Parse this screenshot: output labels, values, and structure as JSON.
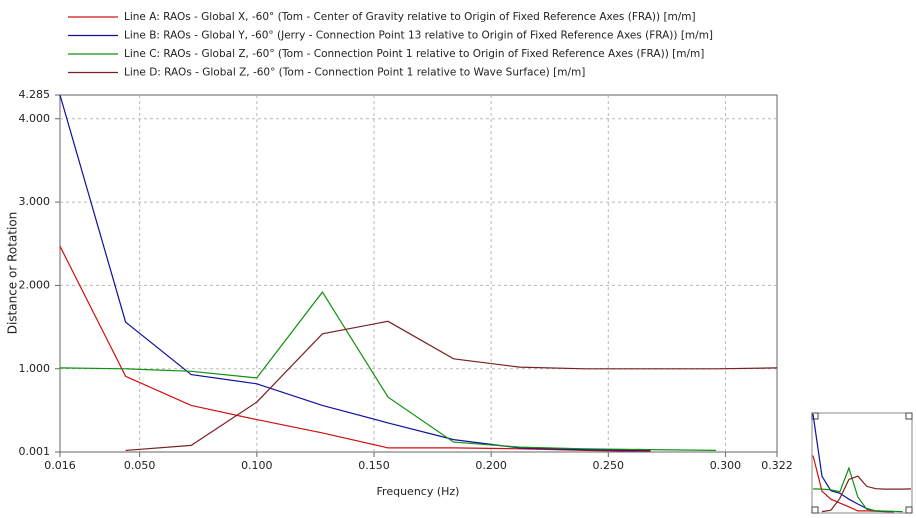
{
  "chart_data": {
    "type": "line",
    "x_label": "Frequency (Hz)",
    "y_label": "Distance or Rotation",
    "x": [
      0.016,
      0.044,
      0.072,
      0.1,
      0.128,
      0.156,
      0.184,
      0.212,
      0.24,
      0.268,
      0.296,
      0.322
    ],
    "series": [
      {
        "name": "Line A: RAOs - Global X, -60° (Tom - Center of Gravity relative to Origin of Fixed Reference Axes (FRA)) [m/m]",
        "color": "#d01010",
        "values": [
          2.47,
          0.91,
          0.56,
          0.39,
          0.23,
          0.05,
          0.05,
          0.04,
          0.02,
          0.01,
          null,
          null
        ]
      },
      {
        "name": "Line B: RAOs - Global Y, -60° (Jerry - Connection Point 13 relative to Origin of Fixed Reference Axes (FRA)) [m/m]",
        "color": "#1010a0",
        "values": [
          4.285,
          1.56,
          0.93,
          0.82,
          0.56,
          0.35,
          0.15,
          0.05,
          0.03,
          0.02,
          null,
          null
        ]
      },
      {
        "name": "Line C: RAOs - Global Z, -60° (Tom - Connection Point 1 relative to Origin of Fixed Reference Axes (FRA)) [m/m]",
        "color": "#109010",
        "values": [
          1.01,
          1.0,
          0.97,
          0.89,
          1.92,
          0.66,
          0.12,
          0.06,
          0.04,
          0.03,
          0.02,
          null
        ]
      },
      {
        "name": "Line D: RAOs - Global Z, -60° (Tom - Connection Point 1 relative to Wave Surface) [m/m]",
        "color": "#7a2020",
        "values": [
          null,
          0.02,
          0.08,
          0.6,
          1.42,
          1.57,
          1.12,
          1.02,
          1.0,
          1.0,
          1.0,
          1.01
        ]
      }
    ],
    "xlim": [
      0.016,
      0.322
    ],
    "xticks": [
      {
        "value": 0.016,
        "label": "0.016"
      },
      {
        "value": 0.05,
        "label": "0.050"
      },
      {
        "value": 0.1,
        "label": "0.100"
      },
      {
        "value": 0.15,
        "label": "0.150"
      },
      {
        "value": 0.2,
        "label": "0.200"
      },
      {
        "value": 0.25,
        "label": "0.250"
      },
      {
        "value": 0.3,
        "label": "0.300"
      },
      {
        "value": 0.322,
        "label": "0.322"
      }
    ],
    "ylim": [
      0.001,
      4.285
    ],
    "yticks": [
      {
        "value": 0.001,
        "label": "0.001"
      },
      {
        "value": 1,
        "label": "1.000"
      },
      {
        "value": 2,
        "label": "2.000"
      },
      {
        "value": 3,
        "label": "3.000"
      },
      {
        "value": 4,
        "label": "4.000"
      },
      {
        "value": 4.285,
        "label": "4.285"
      }
    ],
    "grid": true
  }
}
